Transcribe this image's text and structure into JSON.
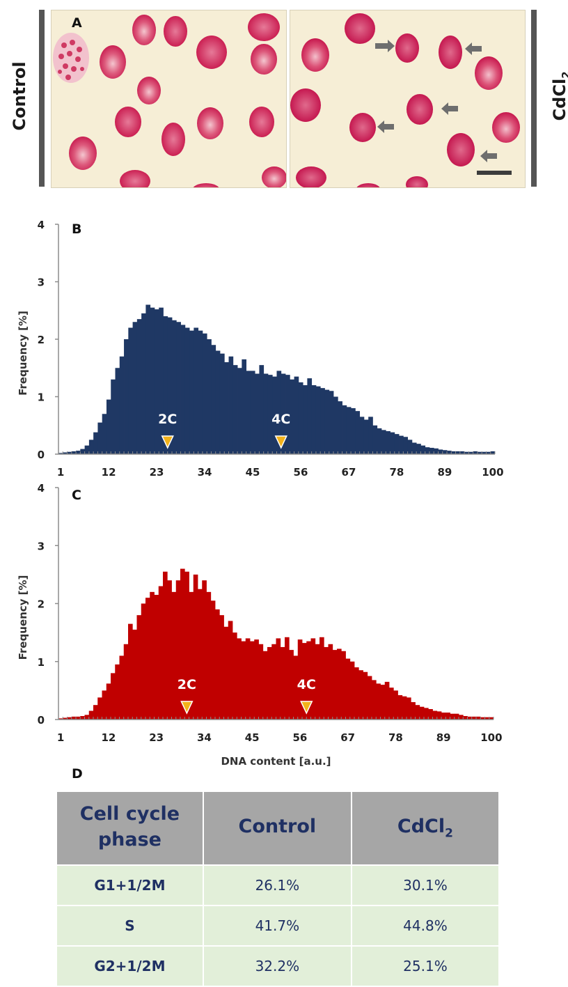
{
  "panel_a": {
    "letter": "A",
    "left_label": "Control",
    "right_label_main": "CdCl",
    "right_label_sub": "2"
  },
  "panel_b": {
    "letter": "B"
  },
  "panel_c": {
    "letter": "C"
  },
  "panel_d": {
    "letter": "D"
  },
  "chart_data": [
    {
      "type": "bar",
      "panel": "B",
      "color": "#1f3864",
      "ylabel": "Frequency [%]",
      "xlabel": "",
      "ylim": [
        0,
        4
      ],
      "y_ticks": [
        0,
        1,
        2,
        3,
        4
      ],
      "x_tick_labels": [
        "1",
        "12",
        "23",
        "34",
        "45",
        "56",
        "67",
        "78",
        "89",
        "100"
      ],
      "x": [
        1,
        2,
        3,
        4,
        5,
        6,
        7,
        8,
        9,
        10,
        11,
        12,
        13,
        14,
        15,
        16,
        17,
        18,
        19,
        20,
        21,
        22,
        23,
        24,
        25,
        26,
        27,
        28,
        29,
        30,
        31,
        32,
        33,
        34,
        35,
        36,
        37,
        38,
        39,
        40,
        41,
        42,
        43,
        44,
        45,
        46,
        47,
        48,
        49,
        50,
        51,
        52,
        53,
        54,
        55,
        56,
        57,
        58,
        59,
        60,
        61,
        62,
        63,
        64,
        65,
        66,
        67,
        68,
        69,
        70,
        71,
        72,
        73,
        74,
        75,
        76,
        77,
        78,
        79,
        80,
        81,
        82,
        83,
        84,
        85,
        86,
        87,
        88,
        89,
        90,
        91,
        92,
        93,
        94,
        95,
        96,
        97,
        98,
        99,
        100
      ],
      "values": [
        0.02,
        0.03,
        0.04,
        0.05,
        0.06,
        0.09,
        0.15,
        0.25,
        0.38,
        0.55,
        0.7,
        0.95,
        1.3,
        1.5,
        1.7,
        2.0,
        2.2,
        2.3,
        2.35,
        2.45,
        2.6,
        2.55,
        2.52,
        2.55,
        2.4,
        2.38,
        2.33,
        2.3,
        2.25,
        2.2,
        2.15,
        2.2,
        2.15,
        2.1,
        2.0,
        1.9,
        1.8,
        1.75,
        1.6,
        1.7,
        1.55,
        1.5,
        1.65,
        1.45,
        1.45,
        1.4,
        1.55,
        1.4,
        1.38,
        1.35,
        1.45,
        1.4,
        1.38,
        1.3,
        1.35,
        1.25,
        1.2,
        1.32,
        1.2,
        1.18,
        1.15,
        1.12,
        1.1,
        1.0,
        0.92,
        0.85,
        0.82,
        0.8,
        0.75,
        0.65,
        0.6,
        0.65,
        0.5,
        0.45,
        0.42,
        0.4,
        0.38,
        0.35,
        0.32,
        0.3,
        0.25,
        0.2,
        0.18,
        0.15,
        0.12,
        0.11,
        0.1,
        0.08,
        0.07,
        0.06,
        0.05,
        0.05,
        0.05,
        0.04,
        0.04,
        0.05,
        0.04,
        0.04,
        0.04,
        0.05
      ],
      "markers": [
        {
          "label": "2C",
          "x": 25.5
        },
        {
          "label": "4C",
          "x": 51.5
        }
      ]
    },
    {
      "type": "bar",
      "panel": "C",
      "color": "#c00000",
      "ylabel": "Frequency [%]",
      "xlabel": "DNA content [a.u.]",
      "ylim": [
        0,
        4
      ],
      "y_ticks": [
        0,
        1,
        2,
        3,
        4
      ],
      "x_tick_labels": [
        "1",
        "12",
        "23",
        "34",
        "45",
        "56",
        "67",
        "78",
        "89",
        "100"
      ],
      "x": [
        1,
        2,
        3,
        4,
        5,
        6,
        7,
        8,
        9,
        10,
        11,
        12,
        13,
        14,
        15,
        16,
        17,
        18,
        19,
        20,
        21,
        22,
        23,
        24,
        25,
        26,
        27,
        28,
        29,
        30,
        31,
        32,
        33,
        34,
        35,
        36,
        37,
        38,
        39,
        40,
        41,
        42,
        43,
        44,
        45,
        46,
        47,
        48,
        49,
        50,
        51,
        52,
        53,
        54,
        55,
        56,
        57,
        58,
        59,
        60,
        61,
        62,
        63,
        64,
        65,
        66,
        67,
        68,
        69,
        70,
        71,
        72,
        73,
        74,
        75,
        76,
        77,
        78,
        79,
        80,
        81,
        82,
        83,
        84,
        85,
        86,
        87,
        88,
        89,
        90,
        91,
        92,
        93,
        94,
        95,
        96,
        97,
        98,
        99,
        100
      ],
      "values": [
        0.02,
        0.03,
        0.04,
        0.05,
        0.05,
        0.06,
        0.08,
        0.15,
        0.25,
        0.38,
        0.5,
        0.62,
        0.8,
        0.95,
        1.1,
        1.3,
        1.65,
        1.55,
        1.8,
        2.0,
        2.1,
        2.2,
        2.15,
        2.3,
        2.55,
        2.4,
        2.2,
        2.4,
        2.6,
        2.55,
        2.2,
        2.5,
        2.25,
        2.4,
        2.2,
        2.05,
        1.9,
        1.8,
        1.6,
        1.7,
        1.5,
        1.4,
        1.35,
        1.4,
        1.35,
        1.38,
        1.3,
        1.18,
        1.25,
        1.3,
        1.4,
        1.25,
        1.42,
        1.2,
        1.1,
        1.38,
        1.32,
        1.35,
        1.4,
        1.3,
        1.42,
        1.25,
        1.3,
        1.2,
        1.22,
        1.18,
        1.05,
        1.0,
        0.9,
        0.85,
        0.82,
        0.75,
        0.68,
        0.62,
        0.6,
        0.65,
        0.55,
        0.5,
        0.42,
        0.4,
        0.38,
        0.3,
        0.25,
        0.22,
        0.2,
        0.18,
        0.15,
        0.14,
        0.12,
        0.12,
        0.1,
        0.1,
        0.08,
        0.06,
        0.05,
        0.05,
        0.05,
        0.04,
        0.04,
        0.04
      ],
      "markers": [
        {
          "label": "2C",
          "x": 30
        },
        {
          "label": "4C",
          "x": 57.5
        }
      ]
    }
  ],
  "table": {
    "headers": [
      {
        "main": "Cell cycle phase",
        "sub": ""
      },
      {
        "main": "Control",
        "sub": ""
      },
      {
        "main": "CdCl",
        "sub": "2"
      }
    ],
    "rows": [
      {
        "phase": "G1+1/2M",
        "control": "26.1%",
        "cdcl2": "30.1%"
      },
      {
        "phase": "S",
        "control": "41.7%",
        "cdcl2": "44.8%"
      },
      {
        "phase": "G2+1/2M",
        "control": "32.2%",
        "cdcl2": "25.1%"
      }
    ]
  }
}
